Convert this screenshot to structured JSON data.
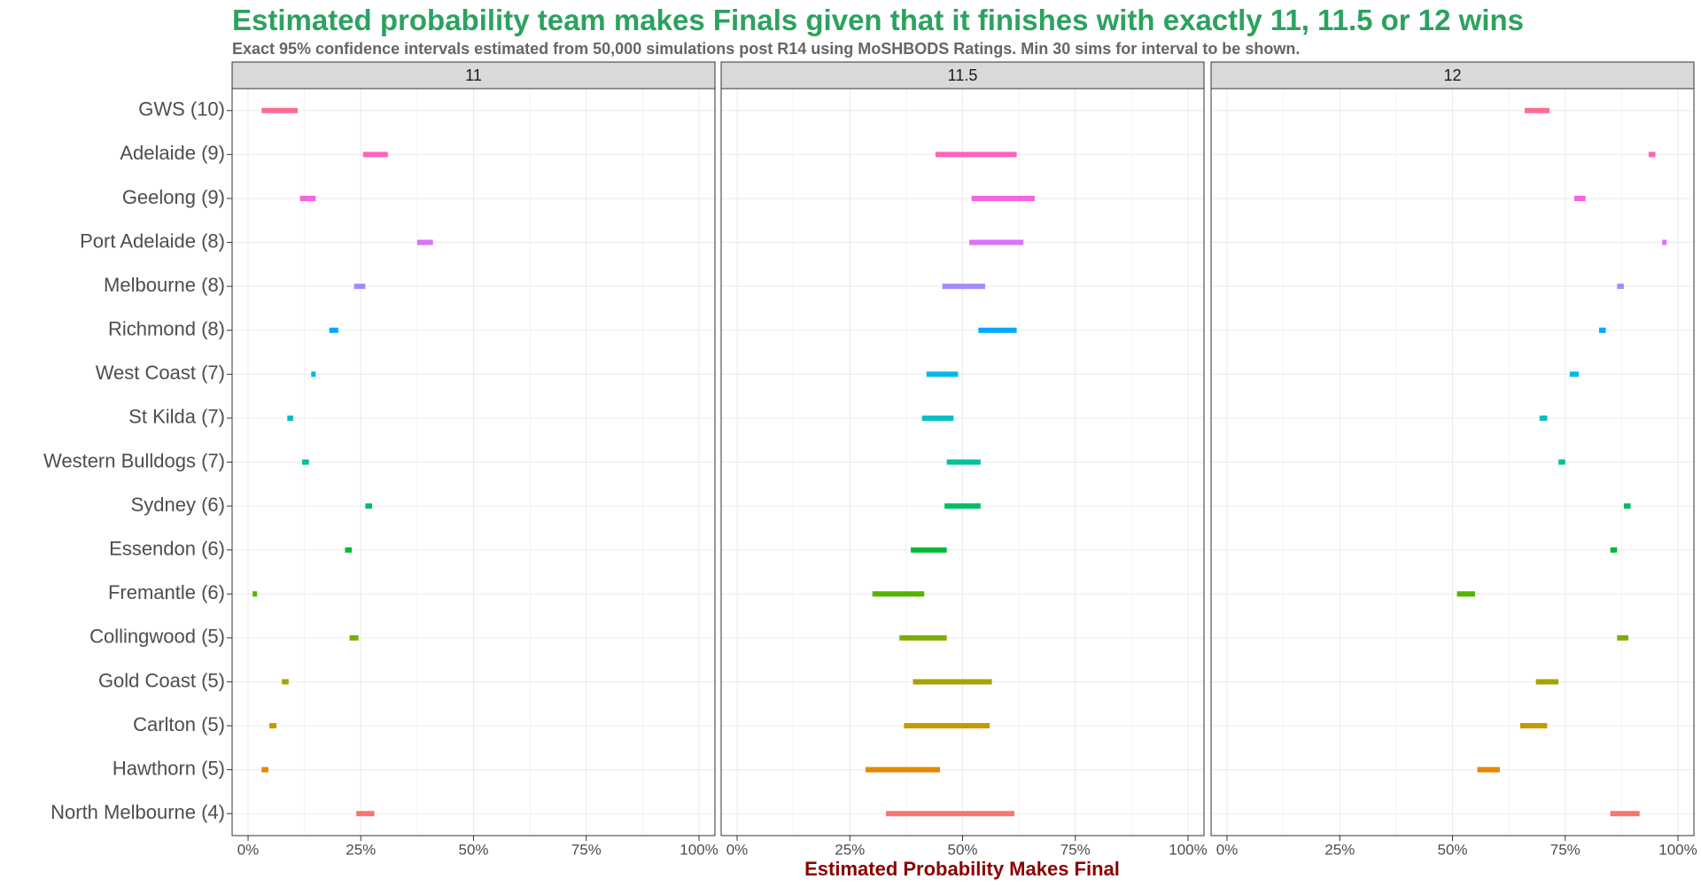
{
  "chart_data": {
    "type": "interval",
    "title": "Estimated probability team makes Finals given that it finishes with exactly 11, 11.5 or 12 wins",
    "subtitle": "Exact 95% confidence intervals estimated from 50,000 simulations post R14 using MoSHBODS Ratings. Min 30 sims for interval to be shown.",
    "x_label": "Estimated Probability Makes Final",
    "categories": [
      "GWS (10)",
      "Adelaide (9)",
      "Geelong (9)",
      "Port Adelaide (8)",
      "Melbourne (8)",
      "Richmond (8)",
      "West Coast (7)",
      "St Kilda (7)",
      "Western Bulldogs (7)",
      "Sydney (6)",
      "Essendon (6)",
      "Fremantle (6)",
      "Collingwood (5)",
      "Gold Coast (5)",
      "Carlton (5)",
      "Hawthorn (5)",
      "North Melbourne (4)"
    ],
    "colors": [
      "#FF6C91",
      "#FF62BC",
      "#F564E3",
      "#DB72FB",
      "#A58AFF",
      "#00A9FF",
      "#00B8E7",
      "#00BFC4",
      "#00C19A",
      "#00BE67",
      "#00BA38",
      "#53B400",
      "#7CAE00",
      "#A3A500",
      "#C49A00",
      "#E58700",
      "#F8766D"
    ],
    "xlim": [
      0,
      100
    ],
    "xticks": [
      {
        "value": 0,
        "label": "0%"
      },
      {
        "value": 25,
        "label": "25%"
      },
      {
        "value": 50,
        "label": "50%"
      },
      {
        "value": 75,
        "label": "75%"
      },
      {
        "value": 100,
        "label": "100%"
      }
    ],
    "xminor": [
      12.5,
      37.5,
      62.5,
      87.5
    ],
    "grid": true,
    "panels": [
      {
        "title": "11",
        "low": [
          3,
          25.5,
          11.5,
          37.5,
          23.5,
          18,
          14,
          8.7,
          12,
          26,
          21.5,
          1,
          22.5,
          7.5,
          4.7,
          3,
          24
        ],
        "high": [
          11,
          31,
          15,
          41,
          26,
          20,
          15,
          10,
          13.5,
          27.5,
          23,
          2,
          24.5,
          9,
          6.3,
          4.5,
          28
        ]
      },
      {
        "title": "11.5",
        "low": [
          null,
          44,
          52,
          51.5,
          45.5,
          53.5,
          42,
          41,
          46.5,
          46,
          38.5,
          30,
          36,
          39,
          37,
          28.5,
          33
        ],
        "high": [
          null,
          62,
          66,
          63.5,
          55,
          62,
          49,
          48,
          54,
          54,
          46.5,
          41.5,
          46.5,
          56.5,
          56,
          45,
          61.5
        ]
      },
      {
        "title": "12",
        "low": [
          66,
          93.5,
          77,
          96.5,
          86.5,
          82.5,
          76,
          69.3,
          73.5,
          88,
          85,
          51,
          86.5,
          68.5,
          65,
          55.5,
          85
        ],
        "high": [
          71.5,
          95,
          79.5,
          97.5,
          88,
          84,
          78,
          71,
          75,
          89.5,
          86.5,
          55,
          89,
          73.5,
          71,
          60.5,
          91.5
        ]
      }
    ]
  }
}
